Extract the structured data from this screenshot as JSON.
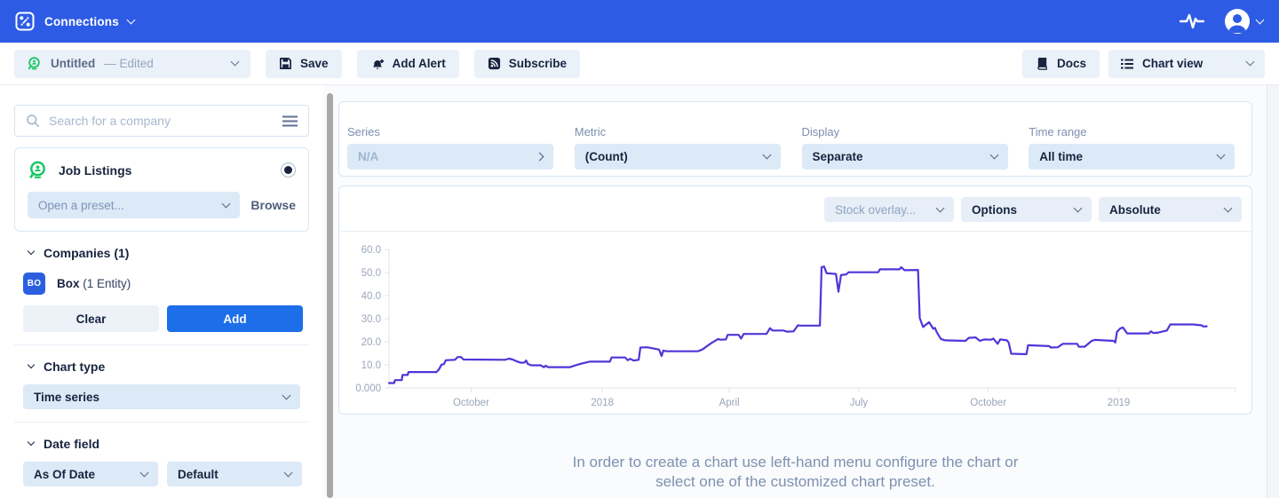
{
  "navbar": {
    "app_name": "Connections"
  },
  "toolbar": {
    "preset": {
      "title": "Untitled",
      "status": "— Edited"
    },
    "save_label": "Save",
    "add_alert_label": "Add Alert",
    "subscribe_label": "Subscribe",
    "docs_label": "Docs",
    "view_label": "Chart view"
  },
  "sidebar": {
    "search_placeholder": "Search for a company",
    "dataset": {
      "name": "Job Listings"
    },
    "preset_dropdown": "Open a preset...",
    "browse_label": "Browse",
    "companies": {
      "header": "Companies (1)",
      "items": [
        {
          "badge": "BO",
          "name": "Box",
          "detail": "(1 Entity)"
        }
      ],
      "clear_label": "Clear",
      "add_label": "Add"
    },
    "chart_type": {
      "header": "Chart type",
      "value": "Time series"
    },
    "date_field": {
      "header": "Date field",
      "value1": "As Of Date",
      "value2": "Default"
    }
  },
  "filters": [
    {
      "label": "Series",
      "value": "N/A"
    },
    {
      "label": "Metric",
      "value": "(Count)"
    },
    {
      "label": "Display",
      "value": "Separate"
    },
    {
      "label": "Time range",
      "value": "All time"
    }
  ],
  "chart_toolbar": {
    "stock_overlay": "Stock overlay...",
    "options": "Options",
    "mode": "Absolute"
  },
  "empty_message": {
    "line1": "In order to create a chart use left-hand menu configure the chart or",
    "line2": "select one of the customized chart preset."
  },
  "colors": {
    "navbar_blue": "#2d5be5",
    "add_button_blue": "#1d6ee9",
    "badge_blue": "#2b5fe0",
    "dataset_green": "#19c763",
    "line_purple": "#5234d8",
    "axis_text_gray": "#9aa6ba"
  },
  "icons": {
    "connections-logo": "node-link glyph",
    "pulse": "activity heartbeat line",
    "avatar": "user silhouette",
    "save": "floppy disk",
    "add-alert": "bell with plus",
    "subscribe": "rss feed",
    "docs": "book",
    "chart-view": "list",
    "search": "magnifier",
    "menu": "hamburger",
    "job-listings": "person in magnifier"
  },
  "chart_data": {
    "type": "line",
    "title": "",
    "xlabel": "",
    "ylabel": "",
    "line_color": "#5234d8",
    "ylim": [
      0,
      60
    ],
    "grid": false,
    "legend": "none",
    "y_ticks": [
      {
        "label": "0.000",
        "value": 0
      },
      {
        "label": "10.0",
        "value": 10
      },
      {
        "label": "20.0",
        "value": 20
      },
      {
        "label": "30.0",
        "value": 30
      },
      {
        "label": "40.0",
        "value": 40
      },
      {
        "label": "50.0",
        "value": 50
      },
      {
        "label": "60.0",
        "value": 60
      }
    ],
    "x_ticks": [
      {
        "label": "October",
        "pos": 0.097
      },
      {
        "label": "2018",
        "pos": 0.252
      },
      {
        "label": "April",
        "pos": 0.402
      },
      {
        "label": "July",
        "pos": 0.555
      },
      {
        "label": "October",
        "pos": 0.708
      },
      {
        "label": "2019",
        "pos": 0.862
      }
    ],
    "points": [
      [
        0.0,
        2.1
      ],
      [
        0.006,
        2.1
      ],
      [
        0.007,
        3.4
      ],
      [
        0.015,
        3.4
      ],
      [
        0.016,
        5.6
      ],
      [
        0.022,
        5.6
      ],
      [
        0.023,
        6.9
      ],
      [
        0.056,
        6.9
      ],
      [
        0.059,
        8.0
      ],
      [
        0.062,
        10.1
      ],
      [
        0.065,
        10.3
      ],
      [
        0.067,
        12.0
      ],
      [
        0.078,
        12.2
      ],
      [
        0.081,
        13.4
      ],
      [
        0.085,
        13.4
      ],
      [
        0.088,
        12.3
      ],
      [
        0.137,
        12.2
      ],
      [
        0.142,
        12.7
      ],
      [
        0.146,
        12.3
      ],
      [
        0.151,
        11.5
      ],
      [
        0.156,
        10.9
      ],
      [
        0.16,
        11.0
      ],
      [
        0.162,
        11.9
      ],
      [
        0.164,
        10.4
      ],
      [
        0.168,
        9.8
      ],
      [
        0.179,
        9.8
      ],
      [
        0.183,
        9.0
      ],
      [
        0.185,
        9.6
      ],
      [
        0.188,
        9.0
      ],
      [
        0.214,
        9.0
      ],
      [
        0.221,
        9.9
      ],
      [
        0.228,
        10.6
      ],
      [
        0.237,
        11.4
      ],
      [
        0.261,
        11.4
      ],
      [
        0.263,
        13.2
      ],
      [
        0.279,
        13.2
      ],
      [
        0.282,
        12.0
      ],
      [
        0.285,
        12.6
      ],
      [
        0.289,
        11.9
      ],
      [
        0.295,
        12.2
      ],
      [
        0.297,
        17.5
      ],
      [
        0.305,
        17.6
      ],
      [
        0.319,
        16.6
      ],
      [
        0.322,
        13.8
      ],
      [
        0.324,
        16.2
      ],
      [
        0.328,
        15.9
      ],
      [
        0.365,
        15.9
      ],
      [
        0.37,
        16.6
      ],
      [
        0.381,
        19.5
      ],
      [
        0.387,
        20.8
      ],
      [
        0.389,
        21.2
      ],
      [
        0.391,
        20.9
      ],
      [
        0.398,
        21.0
      ],
      [
        0.4,
        23.0
      ],
      [
        0.413,
        23.0
      ],
      [
        0.416,
        21.4
      ],
      [
        0.419,
        23.4
      ],
      [
        0.446,
        23.4
      ],
      [
        0.45,
        25.9
      ],
      [
        0.453,
        24.9
      ],
      [
        0.466,
        24.9
      ],
      [
        0.47,
        24.4
      ],
      [
        0.478,
        24.5
      ],
      [
        0.483,
        27.1
      ],
      [
        0.486,
        27.0
      ],
      [
        0.509,
        27.0
      ],
      [
        0.511,
        52.3
      ],
      [
        0.514,
        52.6
      ],
      [
        0.517,
        49.7
      ],
      [
        0.528,
        49.4
      ],
      [
        0.531,
        41.7
      ],
      [
        0.534,
        48.9
      ],
      [
        0.54,
        49.2
      ],
      [
        0.543,
        50.1
      ],
      [
        0.578,
        50.1
      ],
      [
        0.58,
        51.4
      ],
      [
        0.603,
        51.4
      ],
      [
        0.605,
        52.3
      ],
      [
        0.609,
        51.0
      ],
      [
        0.625,
        51.1
      ],
      [
        0.627,
        30.3
      ],
      [
        0.631,
        26.4
      ],
      [
        0.638,
        28.5
      ],
      [
        0.643,
        25.6
      ],
      [
        0.645,
        26.0
      ],
      [
        0.647,
        24.2
      ],
      [
        0.652,
        21.2
      ],
      [
        0.657,
        20.6
      ],
      [
        0.681,
        20.4
      ],
      [
        0.685,
        21.7
      ],
      [
        0.693,
        21.9
      ],
      [
        0.698,
        20.4
      ],
      [
        0.703,
        21.0
      ],
      [
        0.711,
        20.9
      ],
      [
        0.714,
        21.4
      ],
      [
        0.719,
        19.1
      ],
      [
        0.722,
        21.0
      ],
      [
        0.73,
        20.6
      ],
      [
        0.732,
        19.7
      ],
      [
        0.735,
        14.8
      ],
      [
        0.753,
        14.6
      ],
      [
        0.755,
        18.5
      ],
      [
        0.78,
        18.1
      ],
      [
        0.782,
        17.5
      ],
      [
        0.79,
        17.6
      ],
      [
        0.796,
        19.1
      ],
      [
        0.813,
        19.1
      ],
      [
        0.815,
        17.8
      ],
      [
        0.822,
        17.9
      ],
      [
        0.83,
        20.4
      ],
      [
        0.834,
        20.8
      ],
      [
        0.856,
        20.4
      ],
      [
        0.858,
        19.7
      ],
      [
        0.86,
        24.3
      ],
      [
        0.864,
        25.8
      ],
      [
        0.867,
        26.2
      ],
      [
        0.872,
        23.6
      ],
      [
        0.898,
        23.6
      ],
      [
        0.9,
        24.5
      ],
      [
        0.903,
        23.8
      ],
      [
        0.909,
        24.0
      ],
      [
        0.919,
        24.9
      ],
      [
        0.923,
        27.5
      ],
      [
        0.95,
        27.5
      ],
      [
        0.96,
        27.1
      ],
      [
        0.962,
        26.6
      ],
      [
        0.966,
        26.7
      ]
    ]
  }
}
